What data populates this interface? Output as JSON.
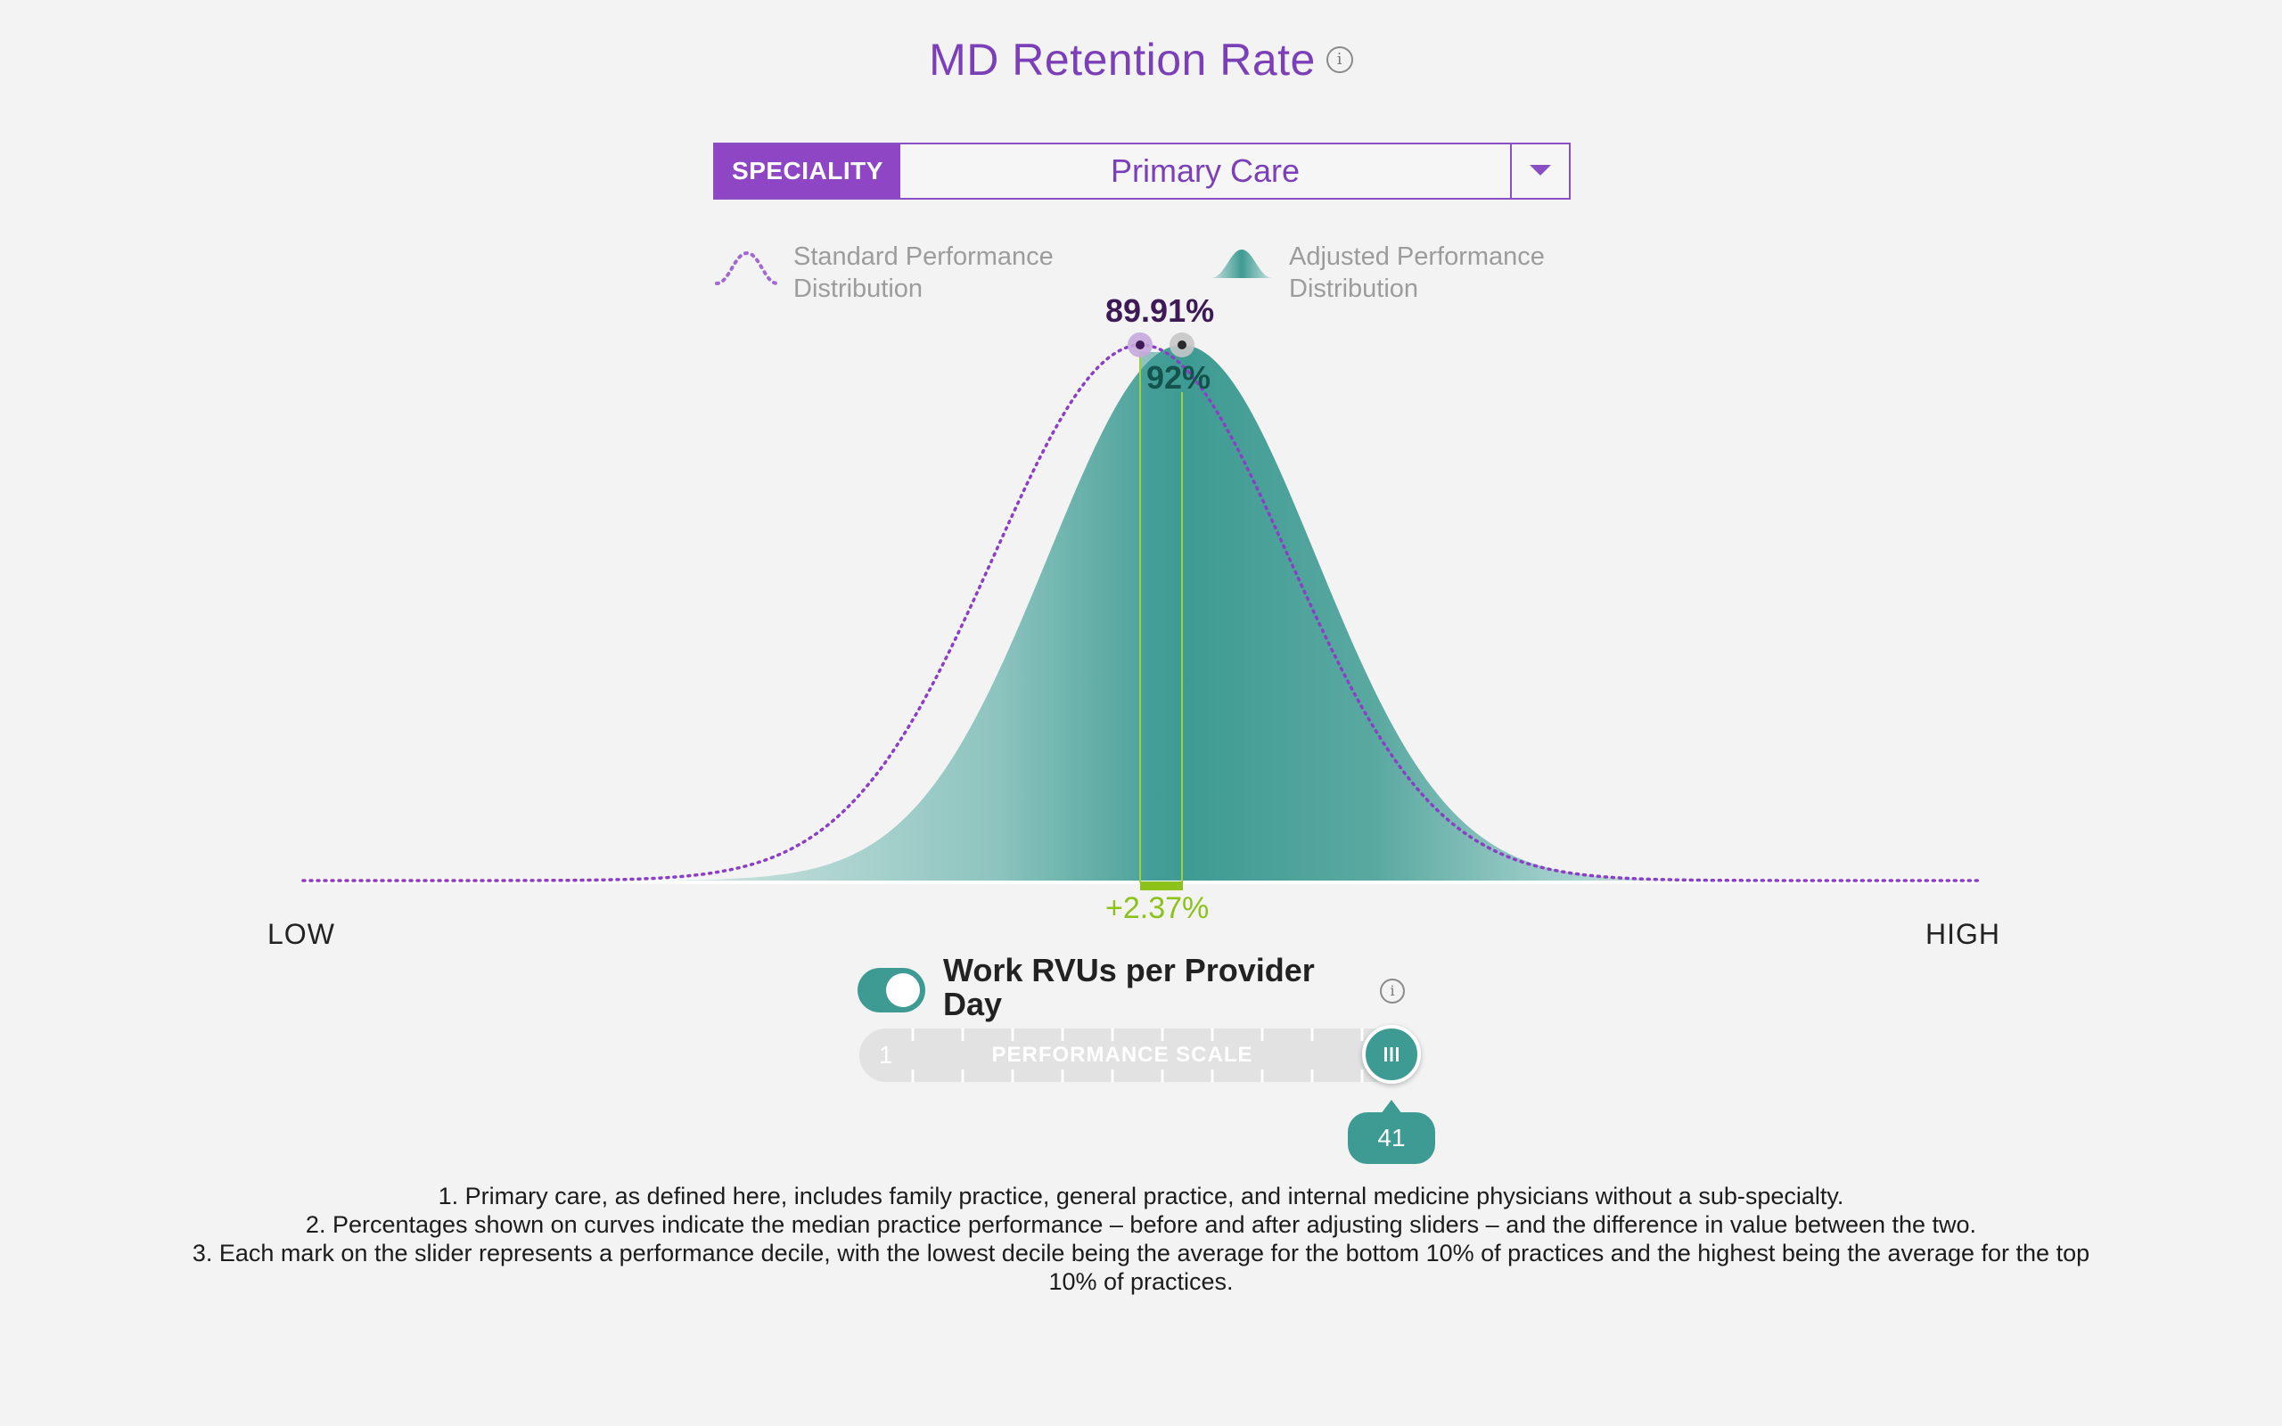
{
  "header": {
    "title": "MD Retention Rate",
    "info_icon": "info-icon"
  },
  "selector": {
    "label": "SPECIALITY",
    "value": "Primary Care",
    "dropdown_icon": "caret-down-icon"
  },
  "legend": {
    "standard": "Standard Performance\nDistribution",
    "adjusted": "Adjusted Performance\nDistribution",
    "standard_line1": "Standard Performance",
    "standard_line2": "Distribution",
    "adjusted_line1": "Adjusted Performance",
    "adjusted_line2": "Distribution"
  },
  "chart_data": {
    "type": "area",
    "standard_median_label": "89.91%",
    "adjusted_median_label": "92%",
    "difference_label": "+2.37%",
    "x_low_label": "LOW",
    "x_high_label": "HIGH",
    "series": [
      {
        "name": "Standard Performance Distribution",
        "style": "dotted",
        "color": "#8a3fc4"
      },
      {
        "name": "Adjusted Performance Distribution",
        "style": "filled",
        "color": "#3e9b93"
      }
    ]
  },
  "slider": {
    "title": "Work RVUs per Provider Day",
    "title_line1": "Work RVUs per Provider",
    "title_line2": "Day",
    "toggle_on": true,
    "min_label": "1",
    "scale_label": "PERFORMANCE SCALE",
    "value": "41",
    "handle_icon": "grip-icon"
  },
  "footnotes": [
    "1. Primary care, as defined here, includes family practice, general practice, and internal medicine physicians without a sub-specialty.",
    "2. Percentages shown on curves indicate the median practice performance – before and after adjusting sliders – and the difference in value between the two.",
    "3. Each mark on the slider represents a performance decile, with the lowest decile being the average for the bottom 10% of practices and the highest being the average for the top 10% of practices."
  ],
  "colors": {
    "accent_purple": "#8e46c4",
    "teal": "#3e9b93",
    "delta_green": "#8cc21a"
  }
}
